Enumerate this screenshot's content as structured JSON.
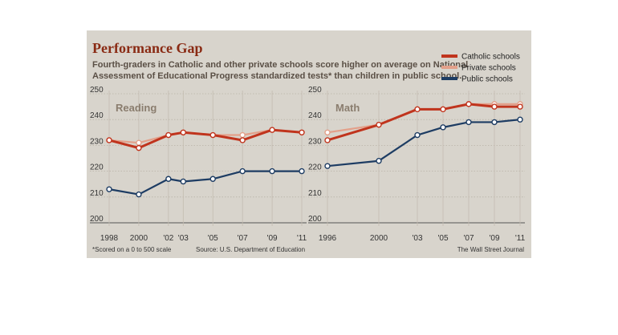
{
  "figure": {
    "title": "Performance Gap",
    "subtitle_lines": [
      "Fourth-graders in Catholic and other private schools score higher on average on National",
      "Assessment of Educational Progress standardized tests* than children in public school."
    ],
    "footnote": "*Scored on a 0 to 500 scale",
    "source": "Source: U.S. Department of Education",
    "credit": "The Wall Street Journal"
  },
  "legend": [
    {
      "name": "Catholic schools",
      "color": "#c0341d"
    },
    {
      "name": "Private schools",
      "color": "#e3a08a"
    },
    {
      "name": "Public schools",
      "color": "#1d3c63"
    }
  ],
  "chart_data": [
    {
      "type": "line",
      "title": "Reading",
      "ylim": [
        200,
        250
      ],
      "yticks": [
        200,
        210,
        220,
        230,
        240,
        250
      ],
      "x": [
        1998,
        2000,
        2002,
        2003,
        2005,
        2007,
        2009,
        2011
      ],
      "xticklabels": [
        {
          "x": 1998,
          "label": "1998"
        },
        {
          "x": 2000,
          "label": "2000"
        },
        {
          "x": 2002,
          "label": "'02"
        },
        {
          "x": 2003,
          "label": "'03"
        },
        {
          "x": 2005,
          "label": "'05"
        },
        {
          "x": 2007,
          "label": "'07"
        },
        {
          "x": 2009,
          "label": "'09"
        },
        {
          "x": 2011,
          "label": "'11"
        }
      ],
      "series": [
        {
          "name": "Catholic schools",
          "values": [
            232,
            229,
            234,
            235,
            234,
            232,
            236,
            235
          ]
        },
        {
          "name": "Private schools",
          "values": [
            232,
            231,
            234,
            235,
            234,
            234,
            236,
            235
          ]
        },
        {
          "name": "Public schools",
          "values": [
            213,
            211,
            217,
            216,
            217,
            220,
            220,
            220
          ]
        }
      ]
    },
    {
      "type": "line",
      "title": "Math",
      "ylim": [
        200,
        250
      ],
      "yticks": [
        200,
        210,
        220,
        230,
        240,
        250
      ],
      "x": [
        1996,
        2000,
        2003,
        2005,
        2007,
        2009,
        2011
      ],
      "xticklabels": [
        {
          "x": 1996,
          "label": "1996"
        },
        {
          "x": 2000,
          "label": "2000"
        },
        {
          "x": 2003,
          "label": "'03"
        },
        {
          "x": 2005,
          "label": "'05"
        },
        {
          "x": 2007,
          "label": "'07"
        },
        {
          "x": 2009,
          "label": "'09"
        },
        {
          "x": 2011,
          "label": "'11"
        }
      ],
      "series": [
        {
          "name": "Catholic schools",
          "values": [
            232,
            238,
            244,
            244,
            246,
            245,
            245
          ]
        },
        {
          "name": "Private schools",
          "values": [
            235,
            238,
            244,
            244,
            246,
            246,
            246
          ]
        },
        {
          "name": "Public schools",
          "values": [
            222,
            224,
            234,
            237,
            239,
            239,
            240
          ]
        }
      ]
    }
  ]
}
